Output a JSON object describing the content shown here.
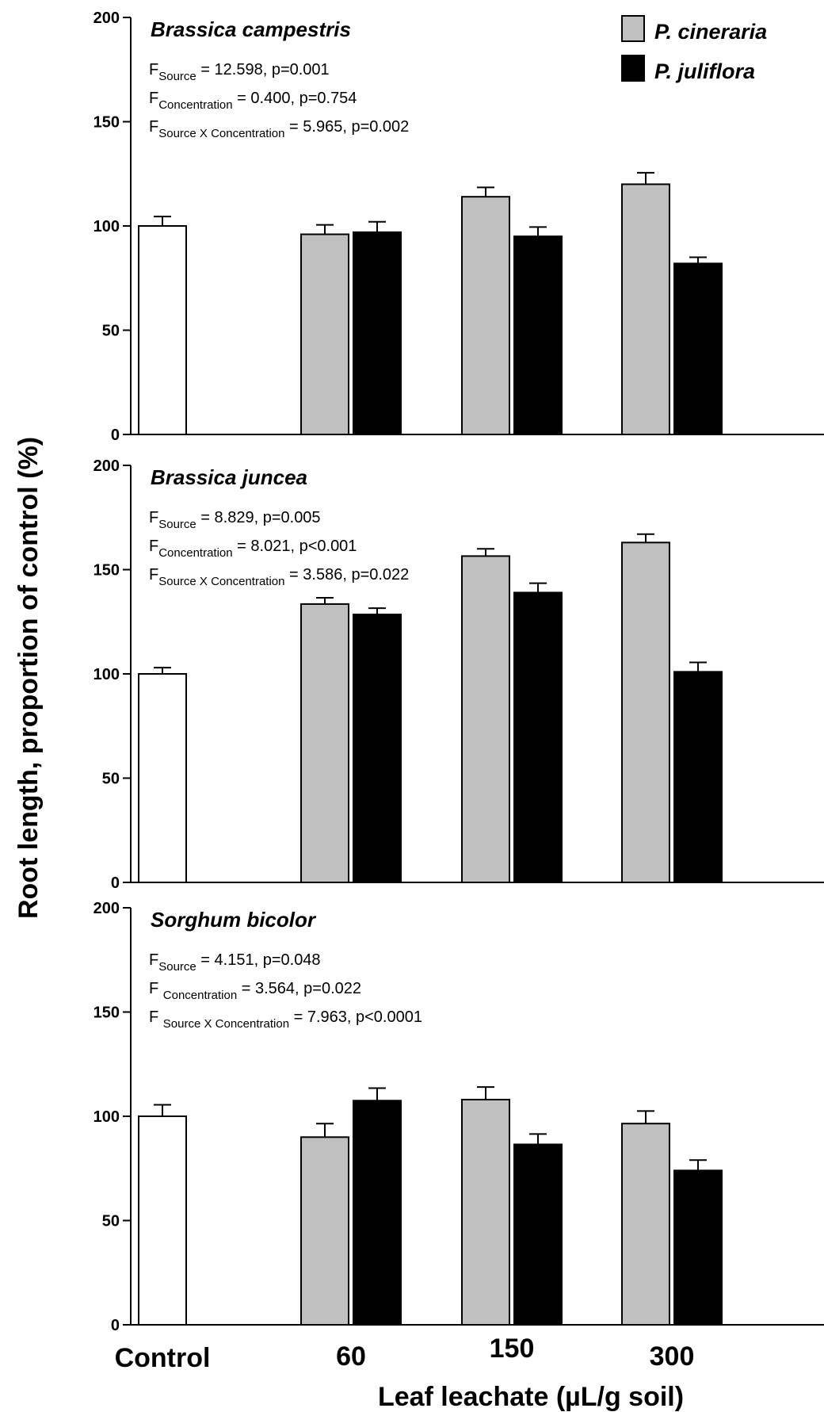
{
  "chart_data": {
    "type": "bar",
    "ylabel": "Root length, proportion of control (%)",
    "xlabel": "Leaf leachate (µL/g soil)",
    "categories": [
      "Control",
      "60",
      "150",
      "300"
    ],
    "ylim": [
      0,
      200
    ],
    "yticks": [
      "0",
      "50",
      "100",
      "150",
      "200"
    ],
    "legend": {
      "placement": "top-right",
      "items": [
        {
          "name": "P. cineraria",
          "color": "#c0c0c0"
        },
        {
          "name": "P. juliflora",
          "color": "#000000"
        }
      ]
    },
    "control_color": "#ffffff",
    "panels": [
      {
        "title": "Brassica campestris",
        "stats": [
          {
            "main": "F",
            "sub": "Source",
            "rest": " = 12.598, p=0.001"
          },
          {
            "main": "F",
            "sub": "Concentration",
            "rest": " = 0.400, p=0.754"
          },
          {
            "main": "F",
            "sub": "Source X Concentration",
            "rest": " = 5.965, p=0.002"
          }
        ],
        "control": {
          "value": 100,
          "err": 4.5
        },
        "series": [
          {
            "name": "P. cineraria",
            "values": [
              96,
              114,
              120
            ],
            "errors": [
              4.5,
              4.5,
              5.5
            ]
          },
          {
            "name": "P. juliflora",
            "values": [
              97,
              95,
              82
            ],
            "errors": [
              5,
              4.5,
              3
            ]
          }
        ]
      },
      {
        "title": "Brassica juncea",
        "stats": [
          {
            "main": "F",
            "sub": "Source",
            "rest": " = 8.829, p=0.005"
          },
          {
            "main": "F",
            "sub": "Concentration",
            "rest": " = 8.021, p<0.001"
          },
          {
            "main": "F",
            "sub": "Source X Concentration",
            "rest": " = 3.586, p=0.022"
          }
        ],
        "control": {
          "value": 100,
          "err": 3
        },
        "series": [
          {
            "name": "P. cineraria",
            "values": [
              133.5,
              156.5,
              163
            ],
            "errors": [
              3,
              3.5,
              4
            ]
          },
          {
            "name": "P. juliflora",
            "values": [
              128.5,
              139,
              101
            ],
            "errors": [
              3,
              4.5,
              4.5
            ]
          }
        ]
      },
      {
        "title": "Sorghum bicolor",
        "stats": [
          {
            "main": "F",
            "sub": "Source",
            "rest": " = 4.151, p=0.048"
          },
          {
            "main": "F ",
            "sub": "Concentration",
            "rest": " = 3.564, p=0.022"
          },
          {
            "main": "F ",
            "sub": "Source X Concentration",
            "rest": " = 7.963, p<0.0001"
          }
        ],
        "control": {
          "value": 100,
          "err": 5.5
        },
        "series": [
          {
            "name": "P. cineraria",
            "values": [
              90,
              108,
              96.5
            ],
            "errors": [
              6.5,
              6,
              6
            ]
          },
          {
            "name": "P. juliflora",
            "values": [
              107.5,
              86.5,
              74
            ],
            "errors": [
              6,
              5,
              5
            ]
          }
        ]
      }
    ]
  }
}
